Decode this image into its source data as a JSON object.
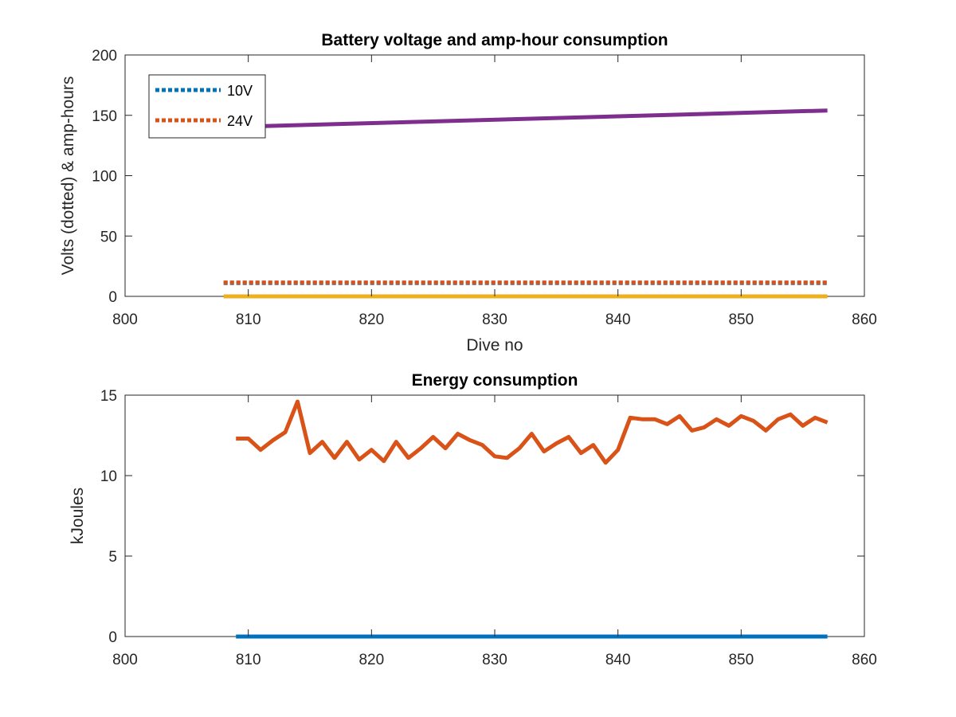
{
  "chart_data": [
    {
      "type": "line",
      "title": "Battery voltage and amp-hour consumption",
      "xlabel": "Dive no",
      "ylabel": "Volts (dotted) & amp-hours",
      "xlim": [
        800,
        860
      ],
      "ylim": [
        0,
        200
      ],
      "xticks": [
        "800",
        "810",
        "820",
        "830",
        "840",
        "850",
        "860"
      ],
      "yticks": [
        "0",
        "50",
        "100",
        "150",
        "200"
      ],
      "grid": false,
      "legend": {
        "placement": "top-left",
        "entries": [
          "10V",
          "24V"
        ]
      },
      "series": [
        {
          "name": "10V",
          "color": "#0072BD",
          "style": "dotted",
          "x": [
            808,
            857
          ],
          "values": [
            11,
            11
          ]
        },
        {
          "name": "24V",
          "color": "#D95319",
          "style": "dotted",
          "x": [
            808,
            857
          ],
          "values": [
            11.5,
            11.5
          ]
        },
        {
          "color": "#EDB120",
          "style": "solid",
          "x": [
            808,
            857
          ],
          "values": [
            0,
            0
          ]
        },
        {
          "color": "#7E2F8E",
          "style": "solid",
          "x": [
            811,
            857
          ],
          "values": [
            141,
            154
          ]
        }
      ]
    },
    {
      "type": "line",
      "title": "Energy consumption",
      "xlabel": "",
      "ylabel": "kJoules",
      "xlim": [
        800,
        860
      ],
      "ylim": [
        0,
        15
      ],
      "xticks": [
        "800",
        "810",
        "820",
        "830",
        "840",
        "850",
        "860"
      ],
      "yticks": [
        "0",
        "5",
        "10",
        "15"
      ],
      "grid": false,
      "series": [
        {
          "color": "#0072BD",
          "style": "solid",
          "x": [
            809,
            857
          ],
          "values": [
            0,
            0
          ]
        },
        {
          "color": "#D95319",
          "style": "solid",
          "x": [
            809,
            810,
            811,
            812,
            813,
            814,
            815,
            816,
            817,
            818,
            819,
            820,
            821,
            822,
            823,
            824,
            825,
            826,
            827,
            828,
            829,
            830,
            831,
            832,
            833,
            834,
            835,
            836,
            837,
            838,
            839,
            840,
            841,
            842,
            843,
            844,
            845,
            846,
            847,
            848,
            849,
            850,
            851,
            852,
            853,
            854,
            855,
            856,
            857
          ],
          "values": [
            12.3,
            12.3,
            11.6,
            12.2,
            12.7,
            14.6,
            11.4,
            12.1,
            11.1,
            12.1,
            11.0,
            11.6,
            10.9,
            12.1,
            11.1,
            11.7,
            12.4,
            11.7,
            12.6,
            12.2,
            11.9,
            11.2,
            11.1,
            11.7,
            12.6,
            11.5,
            12.0,
            12.4,
            11.4,
            11.9,
            10.8,
            11.6,
            13.6,
            13.5,
            13.5,
            13.2,
            13.7,
            12.8,
            13.0,
            13.5,
            13.1,
            13.7,
            13.4,
            12.8,
            13.5,
            13.8,
            13.1,
            13.6,
            13.3
          ]
        }
      ]
    }
  ]
}
